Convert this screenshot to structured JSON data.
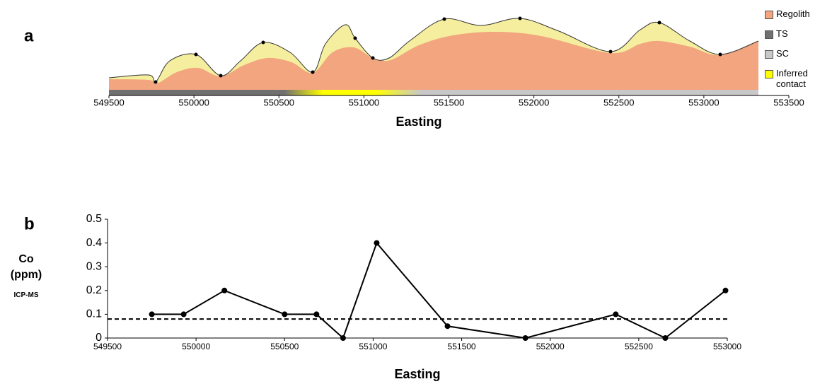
{
  "chart_data": [
    {
      "type": "section",
      "label": "a",
      "xlabel": "Easting",
      "xlim": [
        549500,
        553500
      ],
      "xticks": [
        549500,
        550000,
        550500,
        551000,
        551500,
        552000,
        552500,
        553000,
        553500
      ],
      "legend": [
        {
          "name": "Regolith",
          "color": "#f2a57f"
        },
        {
          "name": "TS",
          "color": "#707070"
        },
        {
          "name": "SC",
          "color": "#c8c8c8"
        },
        {
          "name": "Inferred contact",
          "color": "#ffff00"
        }
      ]
    },
    {
      "type": "line",
      "label": "b",
      "xlabel": "Easting",
      "ylabel": "Co (ppm)",
      "ylabel_note": "ICP-MS",
      "x": [
        549750,
        549930,
        550160,
        550500,
        550680,
        550830,
        551020,
        551420,
        551860,
        552370,
        552650,
        552990
      ],
      "values": [
        0.1,
        0.1,
        0.2,
        0.1,
        0.1,
        0,
        0.4,
        0.05,
        0,
        0.1,
        0,
        0.2
      ],
      "color": "#000000",
      "threshold": 0.08,
      "xlim": [
        549500,
        553000
      ],
      "xticks": [
        549500,
        550000,
        550500,
        551000,
        551500,
        552000,
        552500,
        553000
      ],
      "ylim": [
        0,
        0.5
      ],
      "yticks": [
        0,
        0.1,
        0.2,
        0.3,
        0.4,
        0.5
      ]
    }
  ]
}
